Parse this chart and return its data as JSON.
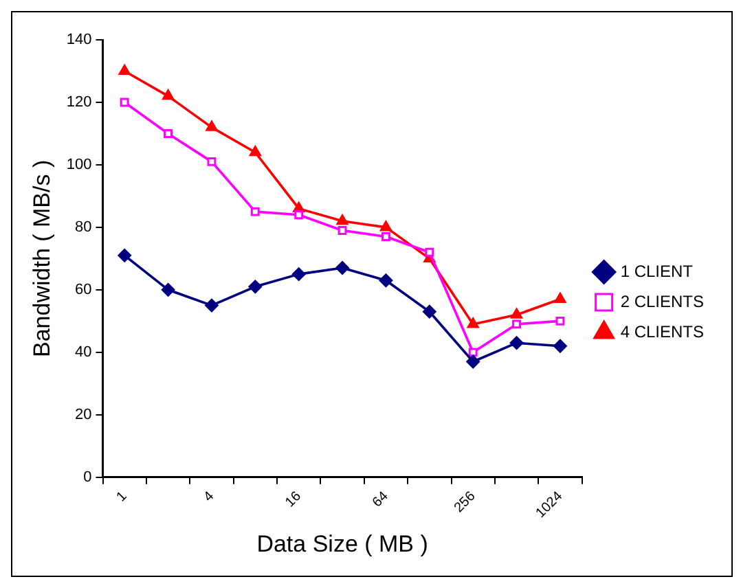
{
  "chart_data": {
    "type": "line",
    "xlabel": "Data Size ( MB )",
    "ylabel": "Bandwidth ( MB/s )",
    "categories": [
      "1",
      null,
      "4",
      null,
      "16",
      null,
      "64",
      null,
      "256",
      null,
      "1024"
    ],
    "series": [
      {
        "name": "1 CLIENT",
        "color": "#000080",
        "marker": "diamond",
        "values": [
          71,
          60,
          55,
          61,
          65,
          67,
          63,
          53,
          37,
          43,
          42
        ]
      },
      {
        "name": "2 CLIENTS",
        "color": "#ff00ff",
        "marker": "square",
        "values": [
          120,
          110,
          101,
          85,
          84,
          79,
          77,
          72,
          40,
          49,
          50
        ]
      },
      {
        "name": "4 CLIENTS",
        "color": "#ff0000",
        "marker": "triangle",
        "values": [
          130,
          122,
          112,
          104,
          86,
          82,
          80,
          70,
          49,
          52,
          57
        ]
      }
    ],
    "ylim": [
      0,
      140
    ],
    "yticks": [
      0,
      20,
      40,
      60,
      80,
      100,
      120,
      140
    ],
    "grid": false,
    "legend": "right"
  }
}
